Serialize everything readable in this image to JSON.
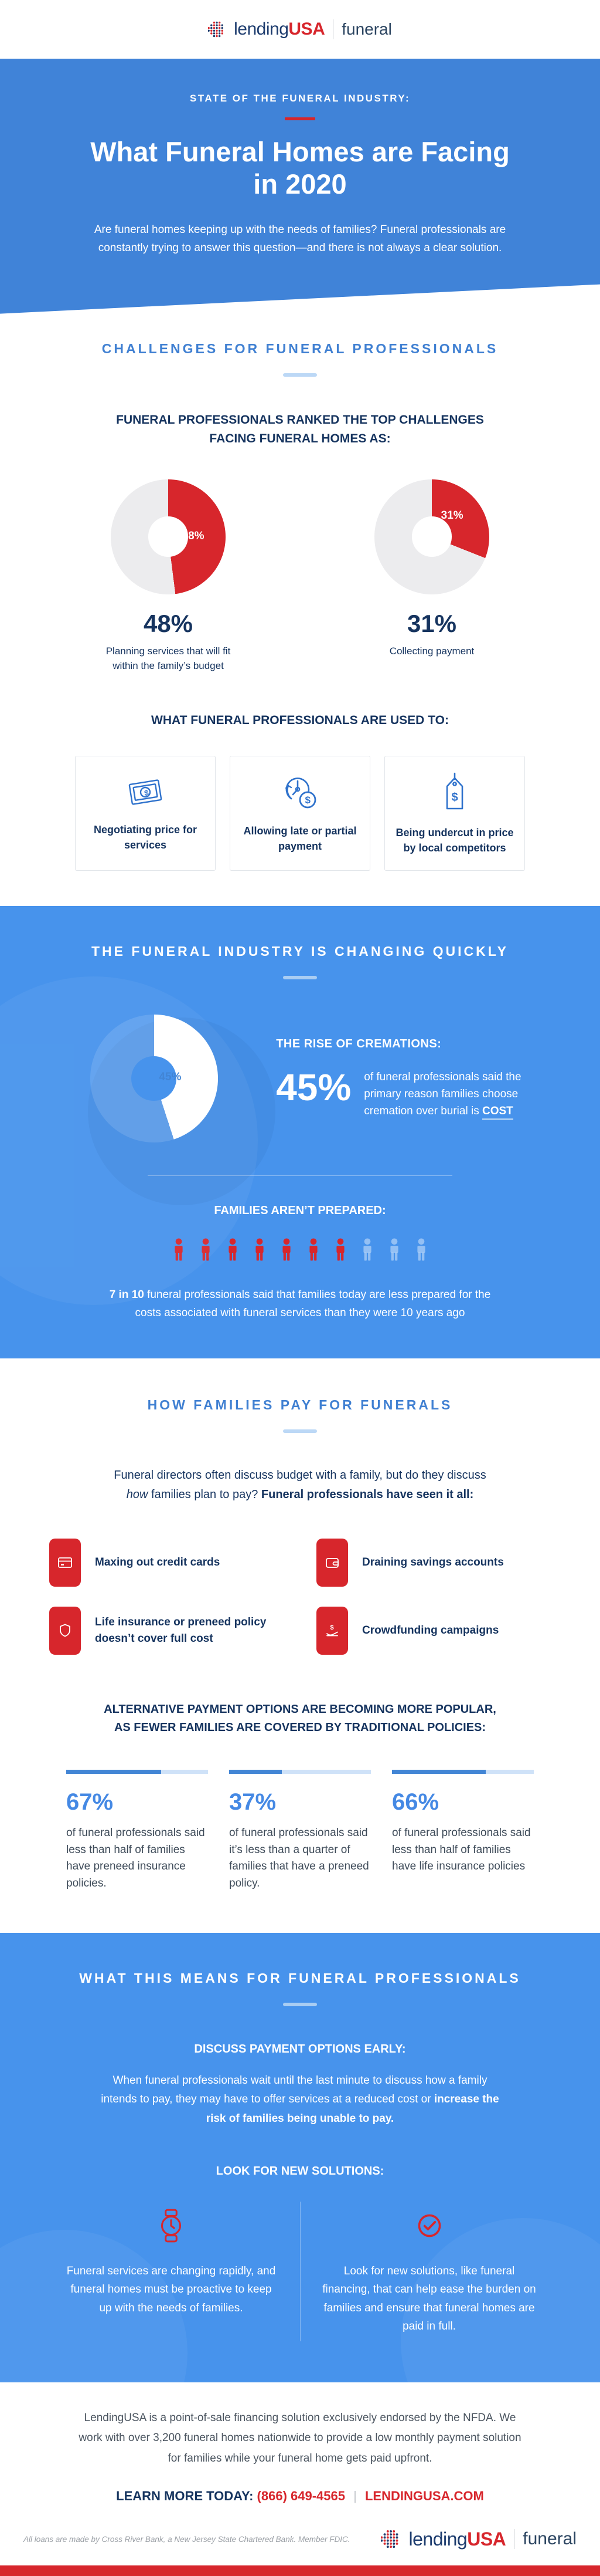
{
  "colors": {
    "red": "#d7262c",
    "navy": "#16345f",
    "blue": "#4793ec",
    "heading_blue": "#4080d2",
    "donut_grey": "#ececee",
    "white": "#ffffff",
    "white_faint": "rgba(255,255,255,0.12)",
    "bar_track": "#cfe2f8",
    "bar_fill": "#4285d5"
  },
  "brand": {
    "lending": "lending",
    "usa": "USA",
    "funeral": "funeral"
  },
  "hero": {
    "eyebrow": "STATE OF THE FUNERAL INDUSTRY:",
    "title": "What Funeral Homes are Facing in 2020",
    "subtitle": "Are funeral homes keeping up with the needs of families? Funeral professionals are constantly trying to answer this question—and there is not always a clear solution."
  },
  "challenges": {
    "heading": "CHALLENGES FOR FUNERAL PROFESSIONALS",
    "ranked_line1": "FUNERAL PROFESSIONALS RANKED THE TOP CHALLENGES",
    "ranked_line2": "FACING FUNERAL HOMES AS:",
    "donuts": [
      {
        "value_label": "48%",
        "percent": 48,
        "caption": "Planning services that will fit within the family’s budget"
      },
      {
        "value_label": "31%",
        "percent": 31,
        "caption": "Collecting payment"
      }
    ],
    "used_to_heading": "WHAT FUNERAL PROFESSIONALS ARE USED TO:",
    "cards": [
      {
        "icon": "dollar-bill-icon",
        "label": "Negotiating price for services"
      },
      {
        "icon": "clock-late-payment-icon",
        "label": "Allowing late or partial payment"
      },
      {
        "icon": "price-tag-icon",
        "label": "Being undercut in price by local competitors"
      }
    ]
  },
  "changing": {
    "heading": "THE FUNERAL INDUSTRY IS CHANGING QUICKLY",
    "cremations_heading": "THE RISE OF CREMATIONS:",
    "cremation_percent": "45%",
    "cremation_text": "of funeral professionals said the primary reason families choose cremation over burial is ",
    "cremation_bold": "COST",
    "donut_label": "45%",
    "families_heading": "FAMILIES AREN’T PREPARED:",
    "families_bold": "7 in 10",
    "families_text": " funeral professionals said that families today are less prepared for the costs associated with funeral services than they were 10 years ago"
  },
  "pay": {
    "heading": "HOW FAMILIES PAY FOR FUNERALS",
    "intro_1": "Funeral directors often discuss budget with a family, but do they discuss ",
    "intro_italic": "how",
    "intro_2": " families plan to pay? ",
    "intro_bold": "Funeral professionals have seen it all:",
    "items": [
      {
        "icon": "credit-card-icon",
        "label": "Maxing out credit cards"
      },
      {
        "icon": "wallet-icon",
        "label": "Draining savings accounts"
      },
      {
        "icon": "shield-icon",
        "label": "Life insurance or preneed policy doesn’t cover full cost"
      },
      {
        "icon": "donation-hand-icon",
        "label": "Crowdfunding campaigns"
      }
    ],
    "alt_heading_1": "ALTERNATIVE PAYMENT OPTIONS ARE BECOMING MORE POPULAR,",
    "alt_heading_2": "AS FEWER FAMILIES ARE COVERED BY TRADITIONAL POLICIES:",
    "stats": [
      {
        "percent": "67%",
        "value": 67,
        "text": "of funeral professionals said less than half of families have preneed insurance policies."
      },
      {
        "percent": "37%",
        "value": 37,
        "text": "of funeral professionals said it’s less than a quarter of families that have a preneed policy."
      },
      {
        "percent": "66%",
        "value": 66,
        "text": "of funeral professionals said less than half of families have life insurance policies"
      }
    ]
  },
  "means": {
    "heading": "WHAT THIS MEANS FOR FUNERAL PROFESSIONALS",
    "discuss_heading": "DISCUSS PAYMENT OPTIONS EARLY:",
    "discuss_1": "When funeral professionals wait until the last minute to discuss how a family intends to pay, they may have to offer services at a reduced cost or ",
    "discuss_bold": "increase the risk of families being unable to pay.",
    "solutions_heading": "LOOK FOR NEW SOLUTIONS:",
    "left_text": "Funeral services are changing rapidly, and funeral homes must be proactive to keep up with the needs of families.",
    "right_text": "Look for new solutions, like funeral financing, that can help ease the burden on families and ensure that funeral homes are paid in full."
  },
  "footer": {
    "about": "LendingUSA is a point-of-sale financing solution exclusively endorsed by the NFDA. We work with over 3,200 funeral homes nationwide to provide a low monthly payment solution for families while your funeral home gets paid upfront.",
    "learn_label": "LEARN MORE TODAY:",
    "phone": "(866) 649-4565",
    "separator": "|",
    "site": "LENDINGUSA.COM",
    "disclaimer": "All loans are made by Cross River Bank, a New Jersey State Chartered Bank. Member FDIC."
  },
  "chart_data": [
    {
      "type": "pie",
      "title": "Top challenge: planning services that fit the family’s budget",
      "labels": [
        "Planning services that will fit within the family’s budget",
        "Other"
      ],
      "values": [
        48,
        52
      ],
      "colors": [
        "#d7262c",
        "#ececee"
      ],
      "data_label": "48%"
    },
    {
      "type": "pie",
      "title": "Top challenge: collecting payment",
      "labels": [
        "Collecting payment",
        "Other"
      ],
      "values": [
        31,
        69
      ],
      "colors": [
        "#d7262c",
        "#ececee"
      ],
      "data_label": "31%"
    },
    {
      "type": "pie",
      "title": "Primary reason families choose cremation over burial is cost",
      "labels": [
        "Cost",
        "Other"
      ],
      "values": [
        45,
        55
      ],
      "colors": [
        "#ffffff",
        "rgba(255,255,255,0.12)"
      ],
      "data_label": "45%"
    },
    {
      "type": "pictogram",
      "title": "Families less prepared for funeral costs than 10 years ago",
      "value": 7,
      "total": 10
    },
    {
      "type": "bar",
      "title": "Coverage by traditional policies",
      "categories": [
        "Less than half of families have preneed insurance policies",
        "Less than a quarter of families have a preneed policy",
        "Less than half of families have life insurance policies"
      ],
      "values": [
        67,
        37,
        66
      ],
      "ylim": [
        0,
        100
      ]
    }
  ]
}
